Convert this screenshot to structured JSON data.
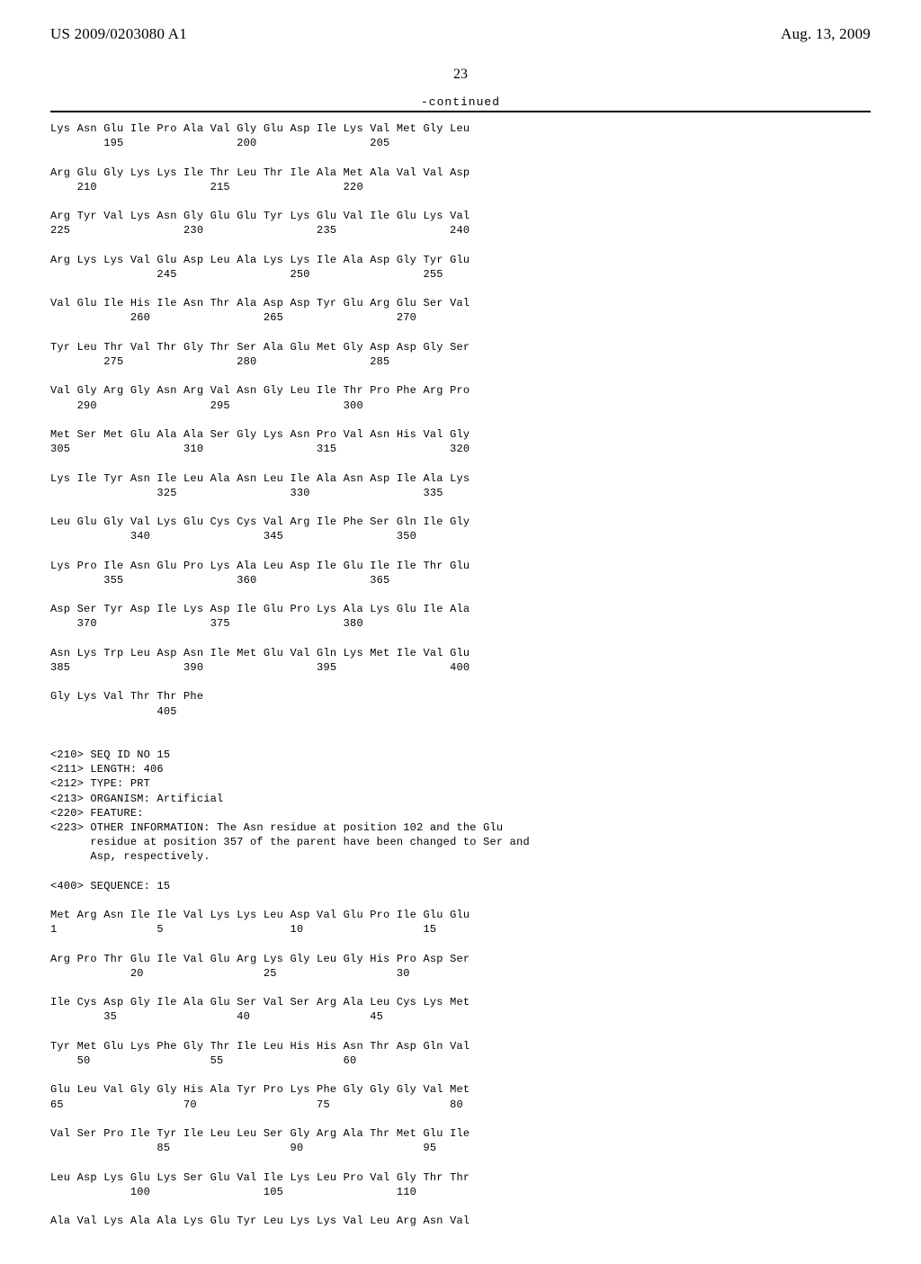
{
  "header": {
    "pub_number": "US 2009/0203080 A1",
    "pub_date": "Aug. 13, 2009"
  },
  "page_number": "23",
  "continued_label": "-continued",
  "sequence_block": "Lys Asn Glu Ile Pro Ala Val Gly Glu Asp Ile Lys Val Met Gly Leu\n        195                 200                 205\n\nArg Glu Gly Lys Lys Ile Thr Leu Thr Ile Ala Met Ala Val Val Asp\n    210                 215                 220\n\nArg Tyr Val Lys Asn Gly Glu Glu Tyr Lys Glu Val Ile Glu Lys Val\n225                 230                 235                 240\n\nArg Lys Lys Val Glu Asp Leu Ala Lys Lys Ile Ala Asp Gly Tyr Glu\n                245                 250                 255\n\nVal Glu Ile His Ile Asn Thr Ala Asp Asp Tyr Glu Arg Glu Ser Val\n            260                 265                 270\n\nTyr Leu Thr Val Thr Gly Thr Ser Ala Glu Met Gly Asp Asp Gly Ser\n        275                 280                 285\n\nVal Gly Arg Gly Asn Arg Val Asn Gly Leu Ile Thr Pro Phe Arg Pro\n    290                 295                 300\n\nMet Ser Met Glu Ala Ala Ser Gly Lys Asn Pro Val Asn His Val Gly\n305                 310                 315                 320\n\nLys Ile Tyr Asn Ile Leu Ala Asn Leu Ile Ala Asn Asp Ile Ala Lys\n                325                 330                 335\n\nLeu Glu Gly Val Lys Glu Cys Cys Val Arg Ile Phe Ser Gln Ile Gly\n            340                 345                 350\n\nLys Pro Ile Asn Glu Pro Lys Ala Leu Asp Ile Glu Ile Ile Thr Glu\n        355                 360                 365\n\nAsp Ser Tyr Asp Ile Lys Asp Ile Glu Pro Lys Ala Lys Glu Ile Ala\n    370                 375                 380\n\nAsn Lys Trp Leu Asp Asn Ile Met Glu Val Gln Lys Met Ile Val Glu\n385                 390                 395                 400\n\nGly Lys Val Thr Thr Phe\n                405\n\n\n<210> SEQ ID NO 15\n<211> LENGTH: 406\n<212> TYPE: PRT\n<213> ORGANISM: Artificial\n<220> FEATURE:\n<223> OTHER INFORMATION: The Asn residue at position 102 and the Glu\n      residue at position 357 of the parent have been changed to Ser and\n      Asp, respectively.\n\n<400> SEQUENCE: 15\n\nMet Arg Asn Ile Ile Val Lys Lys Leu Asp Val Glu Pro Ile Glu Glu\n1               5                   10                  15\n\nArg Pro Thr Glu Ile Val Glu Arg Lys Gly Leu Gly His Pro Asp Ser\n            20                  25                  30\n\nIle Cys Asp Gly Ile Ala Glu Ser Val Ser Arg Ala Leu Cys Lys Met\n        35                  40                  45\n\nTyr Met Glu Lys Phe Gly Thr Ile Leu His His Asn Thr Asp Gln Val\n    50                  55                  60\n\nGlu Leu Val Gly Gly His Ala Tyr Pro Lys Phe Gly Gly Gly Val Met\n65                  70                  75                  80\n\nVal Ser Pro Ile Tyr Ile Leu Leu Ser Gly Arg Ala Thr Met Glu Ile\n                85                  90                  95\n\nLeu Asp Lys Glu Lys Ser Glu Val Ile Lys Leu Pro Val Gly Thr Thr\n            100                 105                 110\n\nAla Val Lys Ala Ala Lys Glu Tyr Leu Lys Lys Val Leu Arg Asn Val"
}
